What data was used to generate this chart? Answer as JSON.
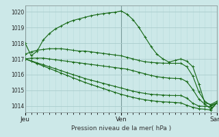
{
  "title": "",
  "xlabel": "Pression niveau de la mer( hPa )",
  "ylabel": "",
  "bg_color": "#cce8e8",
  "grid_color_major": "#aacccc",
  "grid_color_minor": "#bbdddd",
  "line_color": "#1a6b1a",
  "ylim": [
    1013.6,
    1020.4
  ],
  "yticks": [
    1014,
    1015,
    1016,
    1017,
    1018,
    1019,
    1020
  ],
  "xtick_labels": [
    "Jeu",
    "Ven",
    "Sam"
  ],
  "xtick_positions": [
    0,
    16,
    32
  ],
  "num_points": 33,
  "series": [
    [
      1018.0,
      1017.2,
      1017.5,
      1018.2,
      1018.6,
      1018.9,
      1019.1,
      1019.3,
      1019.45,
      1019.55,
      1019.65,
      1019.75,
      1019.82,
      1019.88,
      1019.93,
      1019.97,
      1020.05,
      1019.85,
      1019.5,
      1019.0,
      1018.4,
      1017.8,
      1017.3,
      1017.0,
      1016.8,
      1016.9,
      1017.0,
      1016.85,
      1016.5,
      1015.4,
      1014.2,
      1014.1,
      1014.3
    ],
    [
      1017.3,
      1017.45,
      1017.55,
      1017.6,
      1017.65,
      1017.65,
      1017.65,
      1017.6,
      1017.55,
      1017.5,
      1017.5,
      1017.45,
      1017.4,
      1017.35,
      1017.3,
      1017.25,
      1017.2,
      1017.1,
      1017.0,
      1016.9,
      1016.82,
      1016.78,
      1016.75,
      1016.73,
      1016.72,
      1016.72,
      1016.72,
      1016.5,
      1015.9,
      1014.9,
      1014.3,
      1014.05,
      1014.2
    ],
    [
      1017.0,
      1017.05,
      1017.05,
      1017.05,
      1017.0,
      1016.95,
      1016.9,
      1016.85,
      1016.8,
      1016.75,
      1016.7,
      1016.65,
      1016.6,
      1016.55,
      1016.5,
      1016.45,
      1016.4,
      1016.35,
      1016.25,
      1016.15,
      1016.05,
      1015.95,
      1015.87,
      1015.82,
      1015.78,
      1015.76,
      1015.75,
      1015.55,
      1015.05,
      1014.45,
      1014.12,
      1013.82,
      1014.2
    ],
    [
      1017.0,
      1016.88,
      1016.75,
      1016.63,
      1016.5,
      1016.38,
      1016.25,
      1016.12,
      1016.0,
      1015.88,
      1015.75,
      1015.65,
      1015.55,
      1015.45,
      1015.35,
      1015.25,
      1015.15,
      1015.05,
      1014.95,
      1014.87,
      1014.8,
      1014.75,
      1014.72,
      1014.7,
      1014.68,
      1014.67,
      1014.67,
      1014.5,
      1014.18,
      1014.0,
      1013.98,
      1013.97,
      1014.2
    ],
    [
      1017.0,
      1016.85,
      1016.7,
      1016.55,
      1016.4,
      1016.25,
      1016.1,
      1015.95,
      1015.8,
      1015.65,
      1015.5,
      1015.37,
      1015.25,
      1015.12,
      1015.0,
      1014.87,
      1014.75,
      1014.65,
      1014.55,
      1014.47,
      1014.4,
      1014.35,
      1014.3,
      1014.27,
      1014.25,
      1014.23,
      1014.2,
      1014.05,
      1013.92,
      1013.83,
      1013.8,
      1013.75,
      1014.2
    ]
  ]
}
